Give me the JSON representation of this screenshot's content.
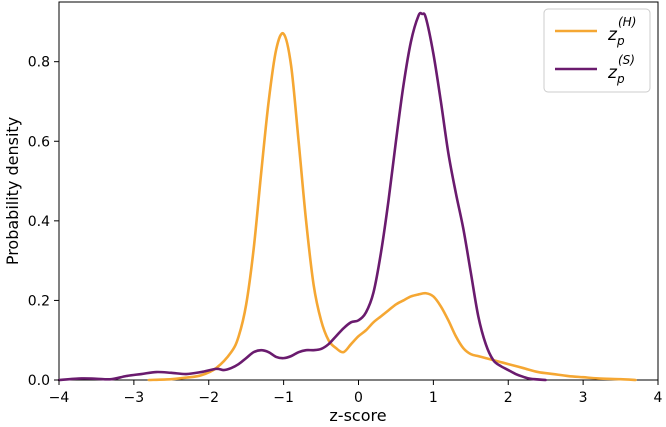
{
  "chart_data": {
    "type": "line",
    "xlabel": "z-score",
    "ylabel": "Probability density",
    "xlim": [
      -4,
      4
    ],
    "ylim": [
      0,
      0.95
    ],
    "xticks": [
      "−4",
      "−3",
      "−2",
      "−1",
      "0",
      "1",
      "2",
      "3",
      "4"
    ],
    "yticks": [
      "0.0",
      "0.2",
      "0.4",
      "0.6",
      "0.8"
    ],
    "grid": false,
    "legend_position": "top-right",
    "series": [
      {
        "name": "z_p^(H)",
        "legend_base": "z",
        "legend_sub": "p",
        "legend_sup": "(H)",
        "color": "#f5a733",
        "x": [
          -2.8,
          -2.5,
          -2.3,
          -2.1,
          -1.9,
          -1.7,
          -1.6,
          -1.5,
          -1.4,
          -1.3,
          -1.2,
          -1.1,
          -1.0,
          -0.9,
          -0.8,
          -0.7,
          -0.6,
          -0.5,
          -0.4,
          -0.3,
          -0.2,
          -0.1,
          0.0,
          0.1,
          0.2,
          0.3,
          0.4,
          0.5,
          0.6,
          0.7,
          0.8,
          0.9,
          1.0,
          1.1,
          1.2,
          1.3,
          1.4,
          1.5,
          1.6,
          1.7,
          1.8,
          1.9,
          2.0,
          2.2,
          2.4,
          2.6,
          2.8,
          3.0,
          3.2,
          3.5,
          3.7
        ],
        "y": [
          0.0,
          0.002,
          0.006,
          0.012,
          0.03,
          0.07,
          0.11,
          0.19,
          0.33,
          0.52,
          0.7,
          0.83,
          0.87,
          0.79,
          0.6,
          0.4,
          0.24,
          0.15,
          0.1,
          0.08,
          0.07,
          0.09,
          0.11,
          0.125,
          0.145,
          0.16,
          0.175,
          0.19,
          0.2,
          0.21,
          0.215,
          0.218,
          0.21,
          0.185,
          0.15,
          0.11,
          0.08,
          0.065,
          0.06,
          0.055,
          0.05,
          0.045,
          0.04,
          0.03,
          0.02,
          0.015,
          0.01,
          0.007,
          0.004,
          0.002,
          0.0
        ]
      },
      {
        "name": "z_p^(S)",
        "legend_base": "z",
        "legend_sub": "p",
        "legend_sup": "(S)",
        "color": "#6a1b6e",
        "x": [
          -4.0,
          -3.7,
          -3.5,
          -3.3,
          -3.1,
          -2.9,
          -2.7,
          -2.5,
          -2.3,
          -2.1,
          -1.9,
          -1.8,
          -1.7,
          -1.6,
          -1.5,
          -1.4,
          -1.3,
          -1.2,
          -1.1,
          -1.0,
          -0.9,
          -0.8,
          -0.7,
          -0.6,
          -0.5,
          -0.4,
          -0.3,
          -0.2,
          -0.1,
          0.0,
          0.1,
          0.2,
          0.3,
          0.4,
          0.5,
          0.6,
          0.7,
          0.8,
          0.85,
          0.9,
          1.0,
          1.1,
          1.2,
          1.3,
          1.4,
          1.5,
          1.6,
          1.7,
          1.8,
          1.9,
          2.0,
          2.1,
          2.2,
          2.3,
          2.5
        ],
        "y": [
          0.0,
          0.004,
          0.003,
          0.002,
          0.01,
          0.015,
          0.02,
          0.018,
          0.015,
          0.02,
          0.028,
          0.025,
          0.03,
          0.04,
          0.055,
          0.07,
          0.075,
          0.07,
          0.058,
          0.055,
          0.06,
          0.07,
          0.075,
          0.075,
          0.078,
          0.09,
          0.11,
          0.13,
          0.145,
          0.15,
          0.17,
          0.22,
          0.32,
          0.45,
          0.6,
          0.74,
          0.85,
          0.915,
          0.92,
          0.91,
          0.82,
          0.7,
          0.57,
          0.47,
          0.38,
          0.27,
          0.16,
          0.09,
          0.05,
          0.035,
          0.025,
          0.015,
          0.008,
          0.003,
          0.0
        ]
      }
    ]
  }
}
